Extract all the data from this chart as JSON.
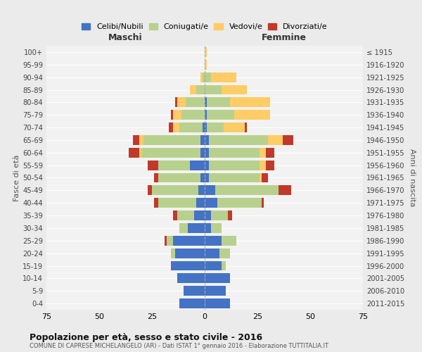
{
  "age_groups": [
    "0-4",
    "5-9",
    "10-14",
    "15-19",
    "20-24",
    "25-29",
    "30-34",
    "35-39",
    "40-44",
    "45-49",
    "50-54",
    "55-59",
    "60-64",
    "65-69",
    "70-74",
    "75-79",
    "80-84",
    "85-89",
    "90-94",
    "95-99",
    "100+"
  ],
  "birth_years": [
    "2011-2015",
    "2006-2010",
    "2001-2005",
    "1996-2000",
    "1991-1995",
    "1986-1990",
    "1981-1985",
    "1976-1980",
    "1971-1975",
    "1966-1970",
    "1961-1965",
    "1956-1960",
    "1951-1955",
    "1946-1950",
    "1941-1945",
    "1936-1940",
    "1931-1935",
    "1926-1930",
    "1921-1925",
    "1916-1920",
    "≤ 1915"
  ],
  "males": {
    "celibi": [
      12,
      10,
      13,
      16,
      14,
      15,
      8,
      5,
      4,
      3,
      2,
      7,
      2,
      2,
      1,
      0,
      0,
      0,
      0,
      0,
      0
    ],
    "coniugati": [
      0,
      0,
      0,
      0,
      2,
      3,
      4,
      8,
      18,
      22,
      20,
      15,
      28,
      27,
      11,
      11,
      9,
      4,
      1,
      0,
      0
    ],
    "vedovi": [
      0,
      0,
      0,
      0,
      0,
      0,
      0,
      0,
      0,
      0,
      0,
      0,
      1,
      2,
      3,
      4,
      4,
      3,
      1,
      0,
      0
    ],
    "divorziati": [
      0,
      0,
      0,
      0,
      0,
      1,
      0,
      2,
      2,
      2,
      2,
      5,
      5,
      3,
      2,
      1,
      1,
      0,
      0,
      0,
      0
    ]
  },
  "females": {
    "nubili": [
      12,
      10,
      12,
      8,
      7,
      8,
      3,
      3,
      6,
      5,
      2,
      2,
      2,
      2,
      1,
      1,
      1,
      0,
      0,
      0,
      0
    ],
    "coniugate": [
      0,
      0,
      0,
      2,
      5,
      7,
      5,
      8,
      21,
      30,
      24,
      24,
      24,
      28,
      8,
      13,
      11,
      8,
      3,
      0,
      0
    ],
    "vedove": [
      0,
      0,
      0,
      0,
      0,
      0,
      0,
      0,
      0,
      0,
      1,
      3,
      3,
      7,
      10,
      17,
      19,
      12,
      12,
      1,
      1
    ],
    "divorziate": [
      0,
      0,
      0,
      0,
      0,
      0,
      0,
      2,
      1,
      6,
      3,
      4,
      4,
      5,
      1,
      0,
      0,
      0,
      0,
      0,
      0
    ]
  },
  "colors": {
    "celibi_nubili": "#4472C4",
    "coniugati": "#B8D08D",
    "vedovi": "#FFCC66",
    "divorziati": "#C0392B"
  },
  "title": "Popolazione per età, sesso e stato civile - 2016",
  "subtitle": "COMUNE DI CAPRESE MICHELANGELO (AR) - Dati ISTAT 1° gennaio 2016 - Elaborazione TUTTITALIA.IT",
  "xlabel_left": "Maschi",
  "xlabel_right": "Femmine",
  "ylabel_left": "Fasce di età",
  "ylabel_right": "Anni di nascita",
  "xlim": 75,
  "background_color": "#ebebeb",
  "plot_background": "#f2f2f2",
  "legend_labels": [
    "Celibi/Nubili",
    "Coniugati/e",
    "Vedovi/e",
    "Divorziati/e"
  ]
}
